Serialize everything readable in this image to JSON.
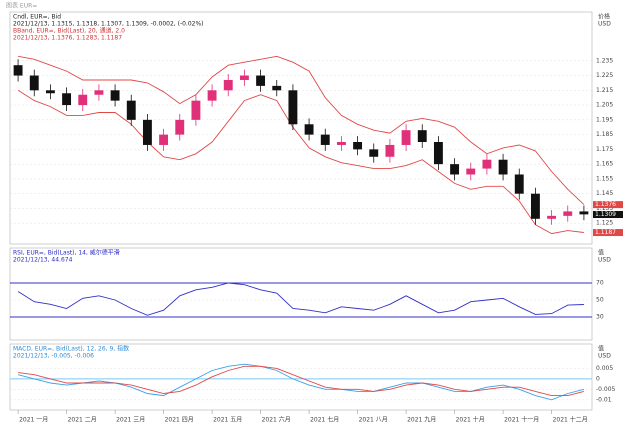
{
  "window": {
    "title": "图表 EUR="
  },
  "chart_data": [
    {
      "type": "candlestick",
      "header": [
        {
          "text": "Cndl, EUR=, Bid",
          "color": "#222222"
        },
        {
          "text": "2021/12/13, 1.1315, 1.1318, 1.1307, 1.1309, -0.0002, (-0.02%)",
          "color": "#222222"
        },
        {
          "text": "BBand, EUR=, Bid(Last), 20, 通道, 2.0",
          "color": "#d03030"
        },
        {
          "text": "2021/12/13, 1.1376, 1.1283, 1.1187",
          "color": "#d03030"
        }
      ],
      "unit_labels": [
        "价格",
        "USD"
      ],
      "categories": [
        "2021 一月",
        null,
        null,
        "2021 二月",
        null,
        null,
        "2021 三月",
        null,
        null,
        "2021 四月",
        null,
        null,
        "2021 五月",
        null,
        null,
        "2021 六月",
        null,
        null,
        "2021 七月",
        null,
        null,
        "2021 八月",
        null,
        null,
        "2021 九月",
        null,
        null,
        "2021 十月",
        null,
        null,
        "2021 十一月",
        null,
        null,
        "2021 十二月",
        null,
        null
      ],
      "open": [
        1.232,
        1.225,
        1.215,
        1.213,
        1.205,
        1.212,
        1.215,
        1.208,
        1.195,
        1.178,
        1.185,
        1.195,
        1.208,
        1.215,
        1.222,
        1.225,
        1.218,
        1.215,
        1.192,
        1.185,
        1.178,
        1.18,
        1.175,
        1.17,
        1.178,
        1.188,
        1.18,
        1.165,
        1.158,
        1.162,
        1.168,
        1.158,
        1.145,
        1.128,
        1.13,
        1.133
      ],
      "high": [
        1.236,
        1.229,
        1.219,
        1.217,
        1.216,
        1.219,
        1.219,
        1.212,
        1.199,
        1.189,
        1.199,
        1.212,
        1.219,
        1.226,
        1.229,
        1.229,
        1.222,
        1.219,
        1.196,
        1.189,
        1.184,
        1.184,
        1.179,
        1.182,
        1.192,
        1.192,
        1.184,
        1.169,
        1.166,
        1.172,
        1.172,
        1.162,
        1.149,
        1.134,
        1.137,
        1.137
      ],
      "low": [
        1.221,
        1.211,
        1.209,
        1.201,
        1.201,
        1.208,
        1.204,
        1.191,
        1.174,
        1.174,
        1.181,
        1.191,
        1.204,
        1.211,
        1.218,
        1.214,
        1.211,
        1.188,
        1.181,
        1.174,
        1.174,
        1.171,
        1.166,
        1.166,
        1.174,
        1.176,
        1.161,
        1.154,
        1.154,
        1.158,
        1.154,
        1.141,
        1.124,
        1.124,
        1.126,
        1.127
      ],
      "close": [
        1.225,
        1.215,
        1.213,
        1.205,
        1.212,
        1.215,
        1.208,
        1.195,
        1.178,
        1.185,
        1.195,
        1.208,
        1.215,
        1.222,
        1.225,
        1.218,
        1.215,
        1.192,
        1.185,
        1.178,
        1.18,
        1.175,
        1.17,
        1.178,
        1.188,
        1.18,
        1.165,
        1.158,
        1.162,
        1.168,
        1.158,
        1.145,
        1.128,
        1.13,
        1.133,
        1.131
      ],
      "up_color": "#e0307a",
      "down_color": "#111111",
      "overlays": [
        {
          "color": "#e04848",
          "values": [
            1.238,
            1.236,
            1.232,
            1.228,
            1.222,
            1.222,
            1.222,
            1.222,
            1.22,
            1.214,
            1.206,
            1.212,
            1.224,
            1.232,
            1.234,
            1.236,
            1.238,
            1.234,
            1.228,
            1.21,
            1.198,
            1.192,
            1.188,
            1.186,
            1.194,
            1.196,
            1.194,
            1.19,
            1.18,
            1.172,
            1.176,
            1.178,
            1.174,
            1.16,
            1.148,
            1.1376
          ]
        },
        {
          "color": "#e04848",
          "values": [
            1.215,
            1.208,
            1.204,
            1.198,
            1.198,
            1.2,
            1.2,
            1.192,
            1.18,
            1.17,
            1.168,
            1.172,
            1.18,
            1.194,
            1.208,
            1.212,
            1.208,
            1.19,
            1.176,
            1.17,
            1.166,
            1.164,
            1.162,
            1.162,
            1.164,
            1.168,
            1.16,
            1.152,
            1.148,
            1.15,
            1.15,
            1.14,
            1.124,
            1.118,
            1.12,
            1.1187
          ]
        }
      ],
      "price_tags": [
        {
          "value": 1.1376,
          "color": "#e04848"
        },
        {
          "value": 1.1309,
          "color": "#111111"
        },
        {
          "value": 1.1187,
          "color": "#e04848"
        }
      ],
      "ylim": [
        1.115,
        1.245
      ],
      "yticks": [
        1.125,
        1.135,
        1.145,
        1.155,
        1.165,
        1.175,
        1.185,
        1.195,
        1.205,
        1.215,
        1.225,
        1.235
      ]
    },
    {
      "type": "line",
      "header": [
        {
          "text": "RSI, EUR=, Bid(Last), 14, 威尔德平滑",
          "color": "#2a2ac8"
        },
        {
          "text": "2021/12/13, 44.674",
          "color": "#2a2ac8"
        }
      ],
      "unit_labels": [
        "值",
        "USD"
      ],
      "series": [
        {
          "color": "#3030c8",
          "values": [
            60,
            48,
            45,
            40,
            52,
            55,
            50,
            40,
            32,
            38,
            55,
            62,
            65,
            70,
            68,
            62,
            58,
            40,
            38,
            35,
            42,
            40,
            38,
            45,
            55,
            45,
            35,
            38,
            48,
            50,
            52,
            42,
            33,
            34,
            44,
            44.674
          ]
        }
      ],
      "hlines": [
        30,
        70
      ],
      "hline_color": "#3030c8",
      "ylim": [
        10,
        90
      ],
      "yticks": [
        30,
        50,
        70
      ]
    },
    {
      "type": "line",
      "header": [
        {
          "text": "MACD, EUR=, Bid(Last), 12, 26, 9, 指数",
          "color": "#2a8ad8"
        },
        {
          "text": "2021/12/13, -0.005, -0.006",
          "color": "#2a8ad8"
        }
      ],
      "unit_labels": [
        "值",
        "USD"
      ],
      "series": [
        {
          "color": "#3aa0e8",
          "values": [
            0.002,
            0.0,
            -0.002,
            -0.003,
            -0.002,
            -0.001,
            -0.002,
            -0.004,
            -0.007,
            -0.008,
            -0.004,
            0.0,
            0.004,
            0.006,
            0.007,
            0.006,
            0.004,
            0.0,
            -0.003,
            -0.005,
            -0.005,
            -0.006,
            -0.006,
            -0.004,
            -0.002,
            -0.002,
            -0.004,
            -0.006,
            -0.006,
            -0.004,
            -0.003,
            -0.005,
            -0.008,
            -0.01,
            -0.007,
            -0.005
          ]
        },
        {
          "color": "#e04848",
          "values": [
            0.003,
            0.002,
            0.0,
            -0.002,
            -0.002,
            -0.002,
            -0.002,
            -0.003,
            -0.005,
            -0.007,
            -0.006,
            -0.003,
            0.001,
            0.004,
            0.006,
            0.006,
            0.005,
            0.002,
            -0.001,
            -0.004,
            -0.005,
            -0.005,
            -0.006,
            -0.005,
            -0.003,
            -0.002,
            -0.003,
            -0.005,
            -0.006,
            -0.005,
            -0.004,
            -0.004,
            -0.006,
            -0.008,
            -0.008,
            -0.006
          ]
        }
      ],
      "hlines": [
        0
      ],
      "hline_color": "#7ac8f0",
      "ylim": [
        -0.012,
        0.009
      ],
      "yticks": [
        -0.01,
        -0.005,
        0,
        0.005
      ]
    }
  ]
}
